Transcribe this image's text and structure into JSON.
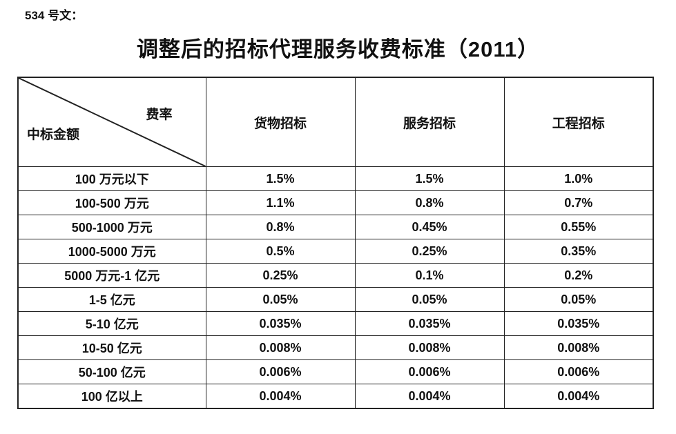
{
  "page": {
    "doc_label": "534 号文：",
    "title": "调整后的招标代理服务收费标准（2011）"
  },
  "table": {
    "corner": {
      "top_right": "费率",
      "bottom_left": "中标金额"
    },
    "columns": [
      "货物招标",
      "服务招标",
      "工程招标"
    ],
    "rows": [
      {
        "label": "100 万元以下",
        "values": [
          "1.5%",
          "1.5%",
          "1.0%"
        ]
      },
      {
        "label": "100-500 万元",
        "values": [
          "1.1%",
          "0.8%",
          "0.7%"
        ]
      },
      {
        "label": "500-1000 万元",
        "values": [
          "0.8%",
          "0.45%",
          "0.55%"
        ]
      },
      {
        "label": "1000-5000 万元",
        "values": [
          "0.5%",
          "0.25%",
          "0.35%"
        ]
      },
      {
        "label": "5000 万元-1 亿元",
        "values": [
          "0.25%",
          "0.1%",
          "0.2%"
        ]
      },
      {
        "label": "1-5 亿元",
        "values": [
          "0.05%",
          "0.05%",
          "0.05%"
        ]
      },
      {
        "label": "5-10 亿元",
        "values": [
          "0.035%",
          "0.035%",
          "0.035%"
        ]
      },
      {
        "label": "10-50 亿元",
        "values": [
          "0.008%",
          "0.008%",
          "0.008%"
        ]
      },
      {
        "label": "50-100 亿元",
        "values": [
          "0.006%",
          "0.006%",
          "0.006%"
        ]
      },
      {
        "label": "100 亿以上",
        "values": [
          "0.004%",
          "0.004%",
          "0.004%"
        ]
      }
    ],
    "colors": {
      "border": "#222222",
      "text": "#111111",
      "background": "#ffffff"
    }
  }
}
